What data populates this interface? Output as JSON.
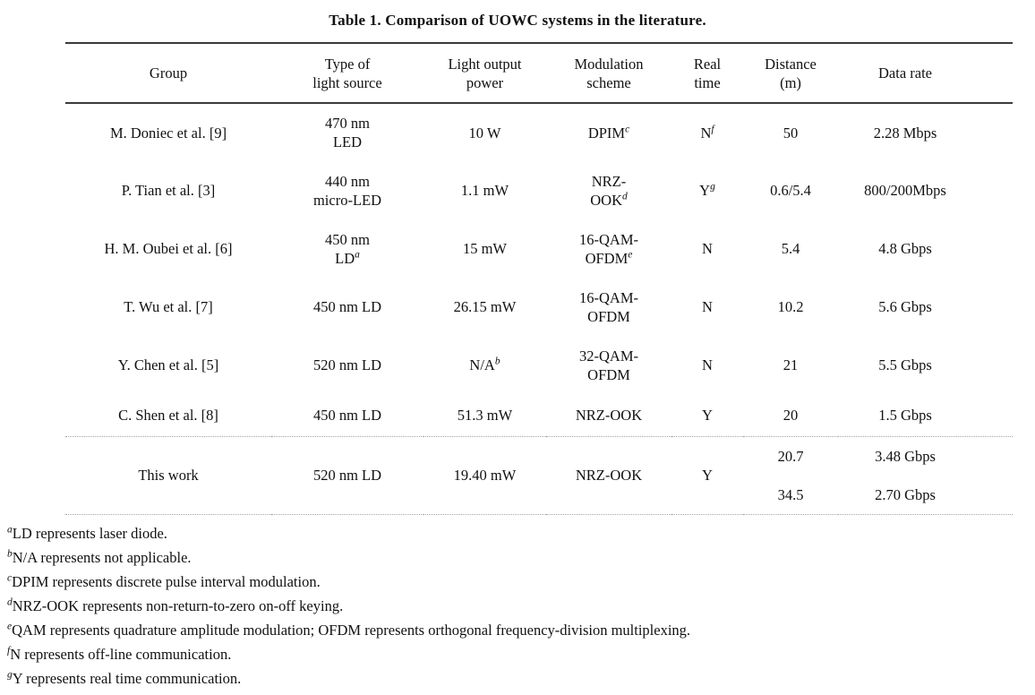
{
  "caption": "Table 1. Comparison of UOWC systems in the literature.",
  "colors": {
    "text": "#111111",
    "solid_rule": "#3b3b3b",
    "dotted_rule": "#a5a5a5",
    "background": "#ffffff"
  },
  "table": {
    "headers": {
      "group": "Group",
      "source": "Type of\nlight source",
      "power": "Light output\npower",
      "modulation": "Modulation\nscheme",
      "real_time": "Real\ntime",
      "distance": "Distance\n(m)",
      "data_rate": "Data rate"
    },
    "rows": [
      {
        "group": "M. Doniec et al. [9]",
        "source": "470 nm\nLED",
        "source_sup": "",
        "power": "10 W",
        "power_sup": "",
        "modulation": "DPIM",
        "modulation_sup": "c",
        "real_time": "N",
        "real_time_sup": "f",
        "distance": "50",
        "data_rate": "2.28 Mbps"
      },
      {
        "group": "P. Tian et al. [3]",
        "source": "440 nm\nmicro-LED",
        "source_sup": "",
        "power": "1.1 mW",
        "power_sup": "",
        "modulation": "NRZ-\nOOK",
        "modulation_sup": "d",
        "real_time": "Y",
        "real_time_sup": "g",
        "distance": "0.6/5.4",
        "data_rate": "800/200Mbps"
      },
      {
        "group": "H. M. Oubei et al. [6]",
        "source": "450 nm\nLD",
        "source_sup": "a",
        "power": "15 mW",
        "power_sup": "",
        "modulation": "16-QAM-\nOFDM",
        "modulation_sup": "e",
        "real_time": "N",
        "real_time_sup": "",
        "distance": "5.4",
        "data_rate": "4.8 Gbps"
      },
      {
        "group": "T. Wu et al. [7]",
        "source": "450 nm LD",
        "source_sup": "",
        "power": "26.15 mW",
        "power_sup": "",
        "modulation": "16-QAM-\nOFDM",
        "modulation_sup": "",
        "real_time": "N",
        "real_time_sup": "",
        "distance": "10.2",
        "data_rate": "5.6 Gbps"
      },
      {
        "group": "Y. Chen et al. [5]",
        "source": "520 nm LD",
        "source_sup": "",
        "power": "N/A",
        "power_sup": "b",
        "modulation": "32-QAM-\nOFDM",
        "modulation_sup": "",
        "real_time": "N",
        "real_time_sup": "",
        "distance": "21",
        "data_rate": "5.5 Gbps"
      },
      {
        "group": "C. Shen et al. [8]",
        "source": "450 nm LD",
        "source_sup": "",
        "power": "51.3 mW",
        "power_sup": "",
        "modulation": "NRZ-OOK",
        "modulation_sup": "",
        "real_time": "Y",
        "real_time_sup": "",
        "distance": "20",
        "data_rate": "1.5 Gbps"
      }
    ],
    "this_work": {
      "group": "This work",
      "source": "520 nm LD",
      "power": "19.40 mW",
      "modulation": "NRZ-OOK",
      "real_time": "Y",
      "entries": [
        {
          "distance": "20.7",
          "data_rate": "3.48 Gbps"
        },
        {
          "distance": "34.5",
          "data_rate": "2.70 Gbps"
        }
      ]
    }
  },
  "footnotes": [
    {
      "sup": "a",
      "text": "LD represents laser diode."
    },
    {
      "sup": "b",
      "text": "N/A represents not applicable."
    },
    {
      "sup": "c",
      "text": "DPIM represents discrete pulse interval modulation."
    },
    {
      "sup": "d",
      "text": "NRZ-OOK represents non-return-to-zero on-off keying."
    },
    {
      "sup": "e",
      "text": "QAM represents quadrature amplitude modulation; OFDM represents orthogonal frequency-division multiplexing."
    },
    {
      "sup": "f",
      "text": "N represents off-line communication."
    },
    {
      "sup": "g",
      "text": "Y represents real time communication."
    }
  ]
}
